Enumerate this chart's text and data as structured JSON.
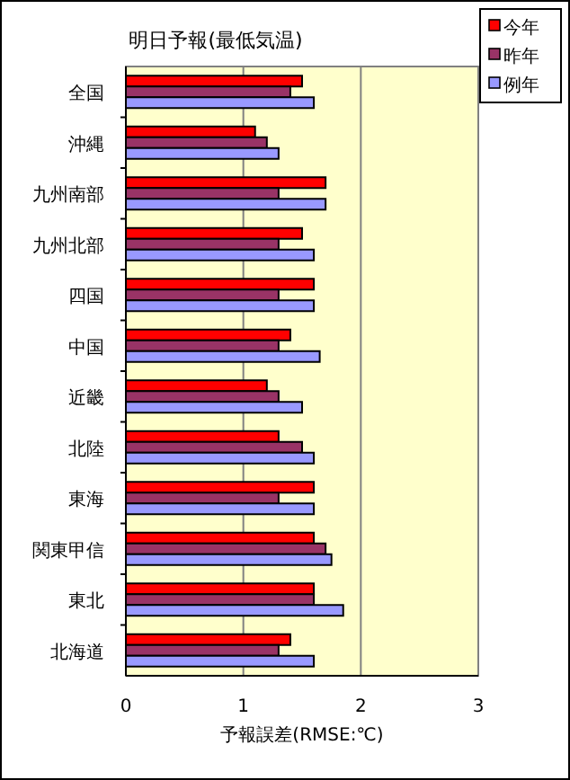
{
  "chart_data": {
    "type": "bar",
    "orientation": "horizontal",
    "title": "明日予報(最低気温)",
    "xlabel": "予報誤差(RMSE:℃)",
    "categories": [
      "全国",
      "沖縄",
      "九州南部",
      "九州北部",
      "四国",
      "中国",
      "近畿",
      "北陸",
      "東海",
      "関東甲信",
      "東北",
      "北海道"
    ],
    "series": [
      {
        "name": "今年",
        "color": "#ff0000",
        "values": [
          1.5,
          1.1,
          1.7,
          1.5,
          1.6,
          1.4,
          1.2,
          1.3,
          1.6,
          1.6,
          1.6,
          1.4
        ]
      },
      {
        "name": "昨年",
        "color": "#993366",
        "values": [
          1.4,
          1.2,
          1.3,
          1.3,
          1.3,
          1.3,
          1.3,
          1.5,
          1.3,
          1.7,
          1.6,
          1.3
        ]
      },
      {
        "name": "例年",
        "color": "#9999ff",
        "values": [
          1.6,
          1.3,
          1.7,
          1.6,
          1.6,
          1.65,
          1.5,
          1.6,
          1.6,
          1.75,
          1.85,
          1.6
        ]
      }
    ],
    "xlim": [
      0,
      3
    ],
    "xticks": [
      0,
      1,
      2,
      3
    ],
    "grid": "x",
    "legend": "top right"
  }
}
